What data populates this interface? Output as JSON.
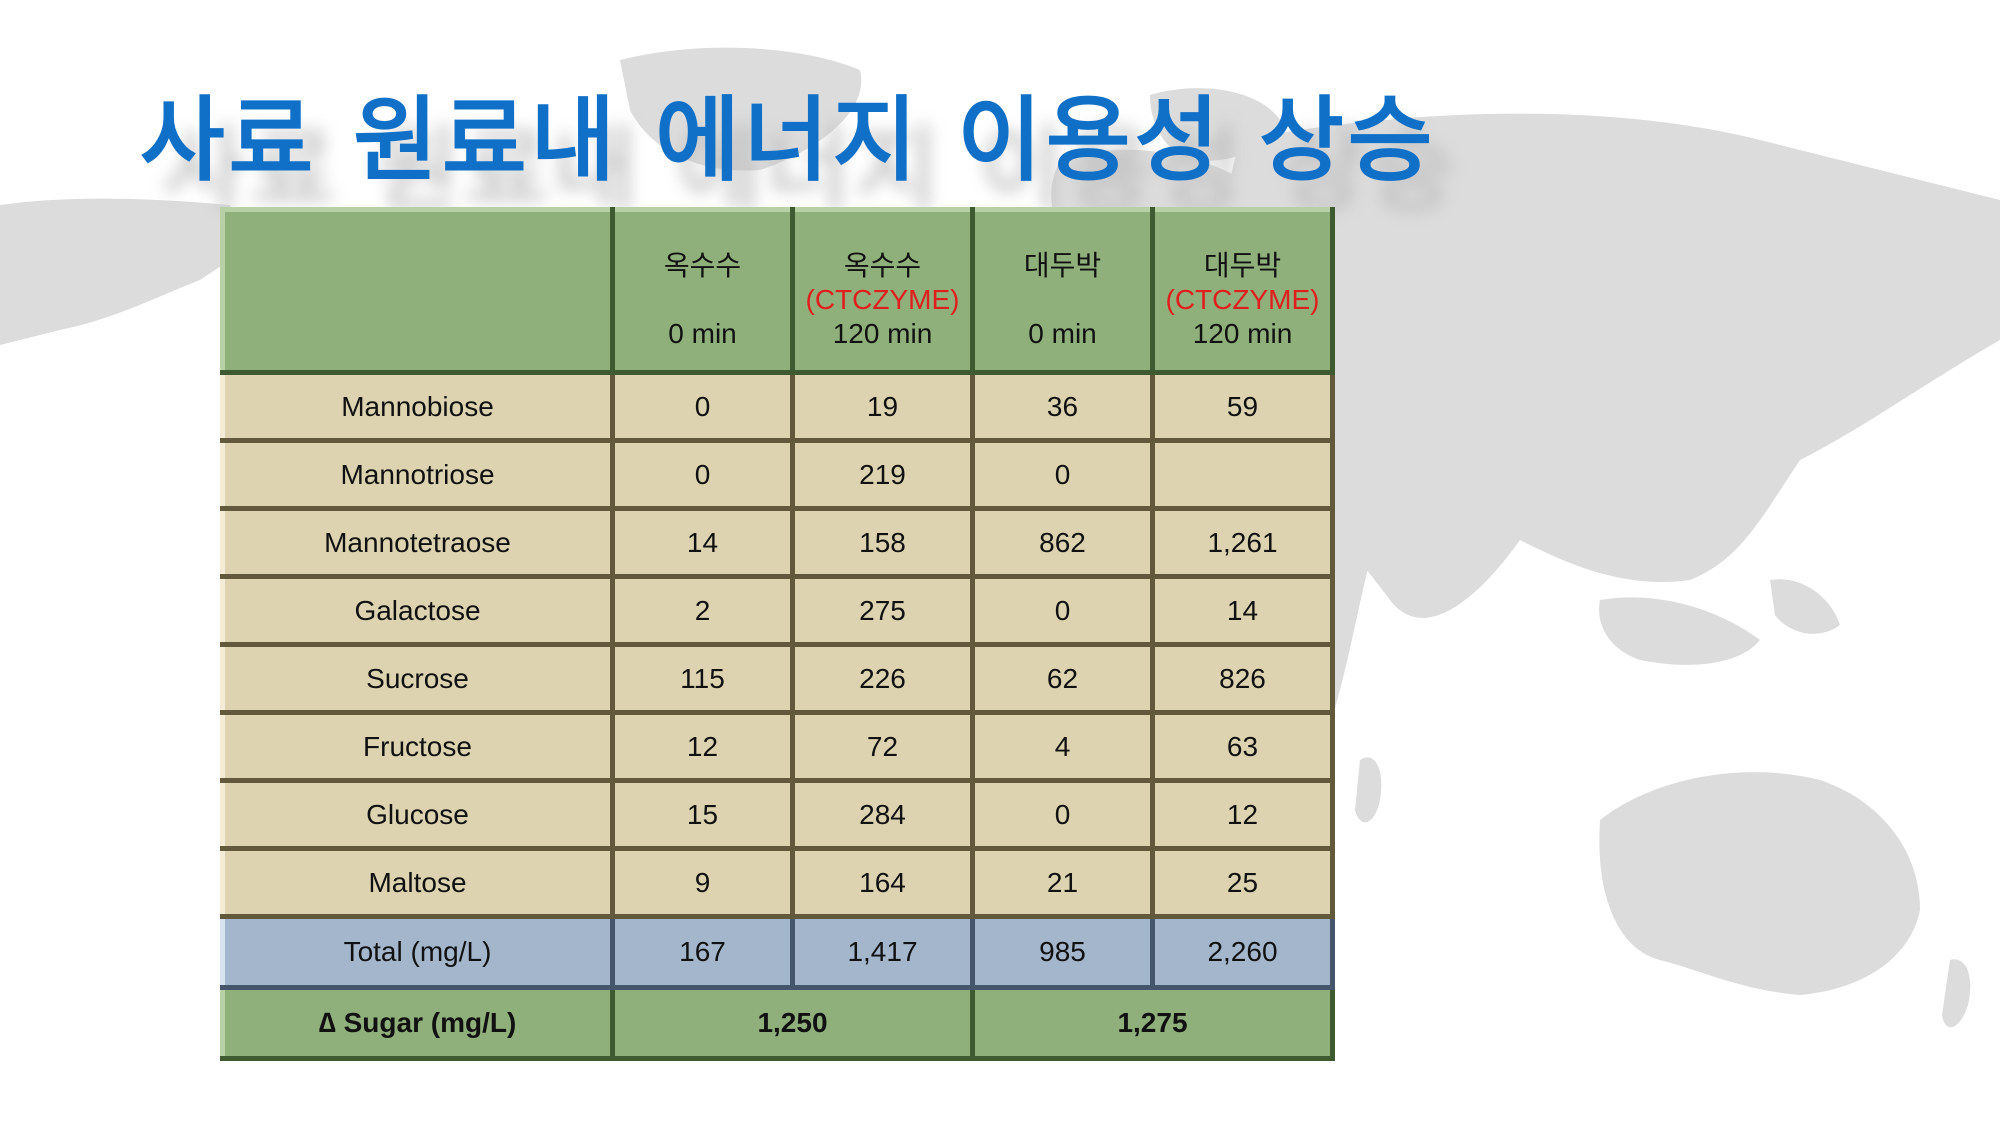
{
  "title": "사료 원료내 에너지 이용성 상승",
  "table": {
    "header": [
      {
        "name": "옥수수",
        "enzyme": "",
        "time": "0 min"
      },
      {
        "name": "옥수수",
        "enzyme": "(CTCZYME)",
        "time": "120 min"
      },
      {
        "name": "대두박",
        "enzyme": "",
        "time": "0 min"
      },
      {
        "name": "대두박",
        "enzyme": "(CTCZYME)",
        "time": "120 min"
      }
    ],
    "rows": [
      {
        "label": "Mannobiose",
        "values": [
          "0",
          "19",
          "36",
          "59"
        ]
      },
      {
        "label": "Mannotriose",
        "values": [
          "0",
          "219",
          "0",
          ""
        ]
      },
      {
        "label": "Mannotetraose",
        "values": [
          "14",
          "158",
          "862",
          "1,261"
        ]
      },
      {
        "label": "Galactose",
        "values": [
          "2",
          "275",
          "0",
          "14"
        ]
      },
      {
        "label": "Sucrose",
        "values": [
          "115",
          "226",
          "62",
          "826"
        ]
      },
      {
        "label": "Fructose",
        "values": [
          "12",
          "72",
          "4",
          "63"
        ]
      },
      {
        "label": "Glucose",
        "values": [
          "15",
          "284",
          "0",
          "12"
        ]
      },
      {
        "label": "Maltose",
        "values": [
          "9",
          "164",
          "21",
          "25"
        ]
      }
    ],
    "total": {
      "label": "Total (mg/L)",
      "values": [
        "167",
        "1,417",
        "985",
        "2,260"
      ]
    },
    "delta": {
      "label": "∆ Sugar (mg/L)",
      "values": [
        "1,250",
        "1,275"
      ]
    }
  },
  "colors": {
    "title": "#1070c8",
    "header_bg": "#8fb07a",
    "row_bg": "#ddd3b0",
    "total_bg": "#a3b6cc",
    "enzyme_text": "#e01e1e",
    "map": "#dcdcdc"
  }
}
